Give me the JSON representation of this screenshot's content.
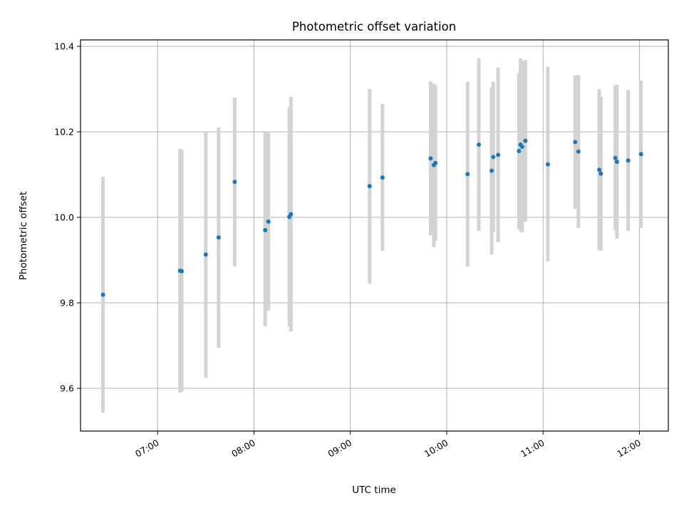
{
  "chart_data": {
    "type": "scatter",
    "title": "Photometric offset variation",
    "xlabel": "UTC time",
    "ylabel": "Photometric offset",
    "x_unit": "hh:mm UTC",
    "xlim": [
      "06:12",
      "12:18"
    ],
    "ylim": [
      9.5,
      10.415
    ],
    "grid": true,
    "legend": "none",
    "colors": {
      "point": "#1f77b4",
      "errorbar": "#d3d3d3",
      "grid": "#b0b0b0"
    },
    "x_ticks": [
      "07:00",
      "08:00",
      "09:00",
      "10:00",
      "11:00",
      "12:00"
    ],
    "y_ticks": [
      "9.6",
      "9.8",
      "10.0",
      "10.2",
      "10.4"
    ],
    "series": [
      {
        "points": [
          {
            "t": "06:26",
            "y": 9.819,
            "lo": 9.543,
            "hi": 10.095
          },
          {
            "t": "07:14",
            "y": 9.875,
            "lo": 9.59,
            "hi": 10.16
          },
          {
            "t": "07:15",
            "y": 9.874,
            "lo": 9.593,
            "hi": 10.158
          },
          {
            "t": "07:30",
            "y": 9.913,
            "lo": 9.625,
            "hi": 10.2
          },
          {
            "t": "07:38",
            "y": 9.953,
            "lo": 9.695,
            "hi": 10.21
          },
          {
            "t": "07:48",
            "y": 10.083,
            "lo": 9.885,
            "hi": 10.28
          },
          {
            "t": "08:07",
            "y": 9.97,
            "lo": 9.745,
            "hi": 10.2
          },
          {
            "t": "08:09",
            "y": 9.99,
            "lo": 9.782,
            "hi": 10.198
          },
          {
            "t": "08:22",
            "y": 10.001,
            "lo": 9.745,
            "hi": 10.257
          },
          {
            "t": "08:23",
            "y": 10.007,
            "lo": 9.733,
            "hi": 10.282
          },
          {
            "t": "09:12",
            "y": 10.073,
            "lo": 9.845,
            "hi": 10.3
          },
          {
            "t": "09:20",
            "y": 10.093,
            "lo": 9.922,
            "hi": 10.265
          },
          {
            "t": "09:50",
            "y": 10.138,
            "lo": 9.958,
            "hi": 10.318
          },
          {
            "t": "09:52",
            "y": 10.122,
            "lo": 9.93,
            "hi": 10.313
          },
          {
            "t": "09:53",
            "y": 10.127,
            "lo": 9.945,
            "hi": 10.308
          },
          {
            "t": "10:13",
            "y": 10.101,
            "lo": 9.885,
            "hi": 10.317
          },
          {
            "t": "10:20",
            "y": 10.17,
            "lo": 9.968,
            "hi": 10.372
          },
          {
            "t": "10:28",
            "y": 10.109,
            "lo": 9.913,
            "hi": 10.305
          },
          {
            "t": "10:29",
            "y": 10.141,
            "lo": 9.965,
            "hi": 10.317
          },
          {
            "t": "10:32",
            "y": 10.146,
            "lo": 9.942,
            "hi": 10.35
          },
          {
            "t": "10:45",
            "y": 10.155,
            "lo": 9.973,
            "hi": 10.337
          },
          {
            "t": "10:46",
            "y": 10.17,
            "lo": 9.968,
            "hi": 10.372
          },
          {
            "t": "10:47",
            "y": 10.165,
            "lo": 9.965,
            "hi": 10.365
          },
          {
            "t": "10:49",
            "y": 10.179,
            "lo": 9.99,
            "hi": 10.368
          },
          {
            "t": "11:03",
            "y": 10.124,
            "lo": 9.897,
            "hi": 10.352
          },
          {
            "t": "11:20",
            "y": 10.176,
            "lo": 10.02,
            "hi": 10.332
          },
          {
            "t": "11:22",
            "y": 10.154,
            "lo": 9.975,
            "hi": 10.333
          },
          {
            "t": "11:35",
            "y": 10.111,
            "lo": 9.923,
            "hi": 10.3
          },
          {
            "t": "11:36",
            "y": 10.102,
            "lo": 9.922,
            "hi": 10.282
          },
          {
            "t": "11:45",
            "y": 10.139,
            "lo": 9.97,
            "hi": 10.308
          },
          {
            "t": "11:46",
            "y": 10.13,
            "lo": 9.95,
            "hi": 10.31
          },
          {
            "t": "11:53",
            "y": 10.133,
            "lo": 9.968,
            "hi": 10.298
          },
          {
            "t": "12:01",
            "y": 10.148,
            "lo": 9.975,
            "hi": 10.32
          }
        ]
      }
    ]
  }
}
